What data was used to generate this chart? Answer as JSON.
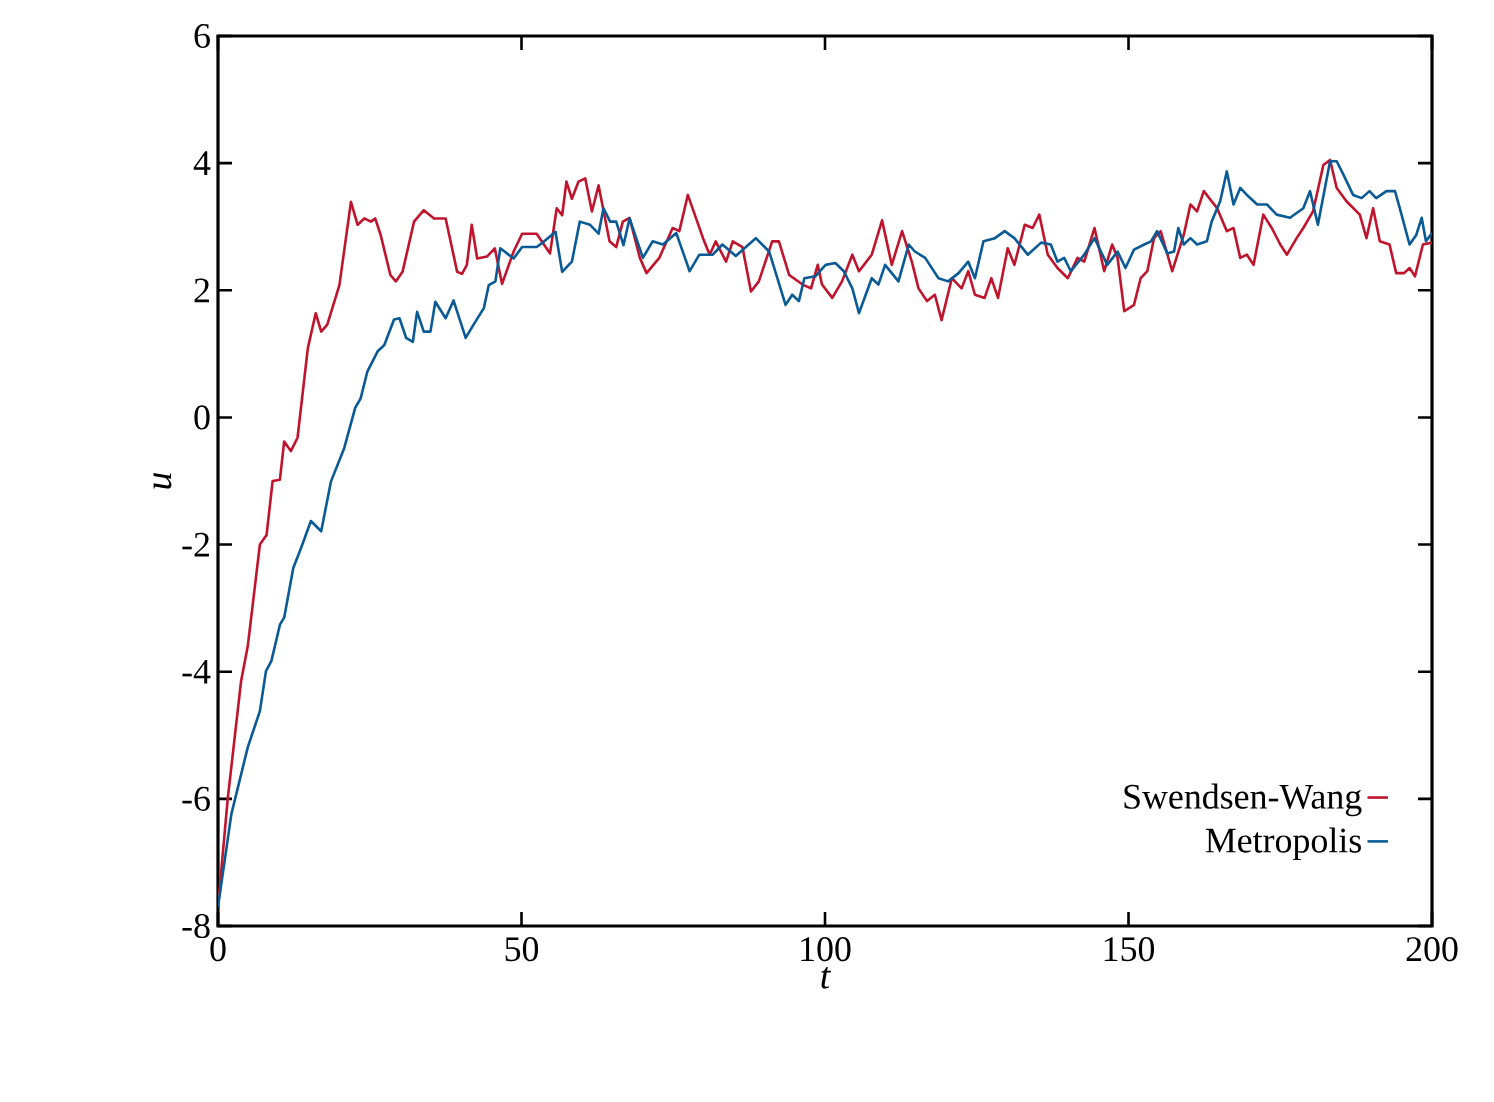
{
  "chart_data": {
    "type": "line",
    "xlabel": "t",
    "ylabel": "u",
    "xlim": [
      0,
      200
    ],
    "ylim": [
      -8,
      6
    ],
    "xticks": [
      0,
      50,
      100,
      150,
      200
    ],
    "yticks": [
      -8,
      -6,
      -4,
      -2,
      0,
      2,
      4,
      6
    ],
    "grid": false,
    "legend": "bottom right",
    "marker": "none",
    "line_style": "solid",
    "series": [
      {
        "name": "Swendsen-Wang",
        "color": "#c0142c",
        "x": [
          0,
          1.6,
          3.8,
          4.9,
          6.9,
          8,
          9,
          10.2,
          10.9,
          12,
          13.1,
          14.8,
          16.1,
          17,
          18,
          20,
          21.9,
          23,
          24.1,
          25.2,
          25.9,
          26.8,
          28.4,
          29.3,
          30.4,
          32.3,
          33.9,
          35.6,
          37.5,
          39.4,
          40.2,
          41,
          41.8,
          42.7,
          44.3,
          45.6,
          46.8,
          48.7,
          50.1,
          52.5,
          54.7,
          55.8,
          56.7,
          57.4,
          58.3,
          59.4,
          60.5,
          61.6,
          62.7,
          64.5,
          65.6,
          66.7,
          67.8,
          69.5,
          70.6,
          72.7,
          74.9,
          76,
          77.4,
          79.9,
          81,
          82,
          83.7,
          84.8,
          86.4,
          87.8,
          89.1,
          91.3,
          92.4,
          94.1,
          96.3,
          97.7,
          98.8,
          99.5,
          101.2,
          102.8,
          104.5,
          105.6,
          107.7,
          109.4,
          111,
          112.7,
          114.3,
          115.4,
          116.8,
          118.1,
          119.2,
          120.9,
          122.5,
          123.6,
          124.7,
          126.3,
          127.4,
          128.5,
          130.1,
          131.2,
          132.9,
          134.2,
          135.3,
          136.7,
          138.3,
          140,
          141.6,
          142.7,
          144.4,
          146,
          147.3,
          148.2,
          149.3,
          150.9,
          152,
          153.1,
          154.2,
          155.3,
          157.2,
          159.1,
          160.2,
          161.3,
          162.4,
          164.6,
          166.2,
          167.3,
          168.4,
          169.5,
          170.6,
          172.2,
          173.6,
          175,
          176.1,
          177.7,
          178.8,
          180.4,
          182.1,
          183.2,
          184.3,
          185.9,
          188.1,
          189.2,
          190.3,
          191.4,
          193,
          194.1,
          195.4,
          196.3,
          197.2,
          198.5,
          200
        ],
        "values": [
          -7.7,
          -6.0,
          -4.15,
          -3.6,
          -2.0,
          -1.85,
          -1.0,
          -0.98,
          -0.38,
          -0.53,
          -0.32,
          1.09,
          1.64,
          1.35,
          1.46,
          2.08,
          3.39,
          3.03,
          3.13,
          3.08,
          3.13,
          2.87,
          2.24,
          2.14,
          2.29,
          3.08,
          3.26,
          3.13,
          3.13,
          2.29,
          2.26,
          2.4,
          3.03,
          2.5,
          2.53,
          2.66,
          2.1,
          2.61,
          2.89,
          2.89,
          2.58,
          3.29,
          3.18,
          3.71,
          3.44,
          3.71,
          3.76,
          3.24,
          3.65,
          2.77,
          2.68,
          3.08,
          3.14,
          2.51,
          2.27,
          2.51,
          2.98,
          2.93,
          3.5,
          2.82,
          2.56,
          2.77,
          2.45,
          2.77,
          2.68,
          1.98,
          2.14,
          2.77,
          2.77,
          2.24,
          2.09,
          2.03,
          2.4,
          2.09,
          1.88,
          2.14,
          2.56,
          2.3,
          2.56,
          3.1,
          2.4,
          2.93,
          2.45,
          2.03,
          1.83,
          1.93,
          1.53,
          2.19,
          2.03,
          2.3,
          1.93,
          1.88,
          2.19,
          1.88,
          2.66,
          2.4,
          3.03,
          2.98,
          3.19,
          2.56,
          2.35,
          2.19,
          2.51,
          2.45,
          2.98,
          2.3,
          2.72,
          2.51,
          1.67,
          1.77,
          2.19,
          2.3,
          2.82,
          2.93,
          2.3,
          2.87,
          3.35,
          3.24,
          3.56,
          3.29,
          2.93,
          2.98,
          2.51,
          2.56,
          2.4,
          3.19,
          2.98,
          2.72,
          2.56,
          2.82,
          2.98,
          3.24,
          3.97,
          4.05,
          3.61,
          3.4,
          3.19,
          2.82,
          3.29,
          2.77,
          2.72,
          2.27,
          2.27,
          2.35,
          2.22,
          2.72,
          2.75
        ]
      },
      {
        "name": "Metropolis",
        "color": "#0a5a96",
        "x": [
          0,
          2.2,
          4.9,
          6.9,
          7.9,
          8.8,
          10.2,
          10.9,
          12.4,
          13.7,
          15.3,
          17,
          18.6,
          20.8,
          22.6,
          23.5,
          24.6,
          26.3,
          27.4,
          29,
          29.9,
          31,
          32.1,
          32.8,
          33.9,
          35,
          35.8,
          37.5,
          38.8,
          40.8,
          42.1,
          43.8,
          44.6,
          45.7,
          46.5,
          48.7,
          50.1,
          52.5,
          53.6,
          55.6,
          56.7,
          58.3,
          59.6,
          61.3,
          62.7,
          63.5,
          64.6,
          65.6,
          66.8,
          67.8,
          70,
          71.6,
          73.3,
          75.5,
          77.7,
          79.3,
          81.5,
          83.1,
          85.3,
          88.6,
          90.8,
          93.5,
          94.6,
          95.7,
          96.6,
          98.4,
          100.1,
          101.7,
          103.1,
          104.5,
          105.6,
          107.7,
          108.8,
          109.9,
          112.1,
          113.8,
          114.8,
          116.5,
          118.7,
          120.3,
          122,
          123.6,
          124.7,
          126.1,
          128,
          129.6,
          131.2,
          133.4,
          135.6,
          137.2,
          138.3,
          139.4,
          140.5,
          142.7,
          144.4,
          146.5,
          148.2,
          149.5,
          150.9,
          152.6,
          153.7,
          154.7,
          156.4,
          157.5,
          158.2,
          159.1,
          160.2,
          161.3,
          162.9,
          163.7,
          165.1,
          166.2,
          167.3,
          168.4,
          169.5,
          171.2,
          172.8,
          174.4,
          176.6,
          178.8,
          179.9,
          181.2,
          183.2,
          184.3,
          185.4,
          187,
          188.4,
          189.7,
          190.8,
          192.5,
          193.9,
          194.7,
          196.3,
          197.4,
          198.3,
          199,
          200
        ],
        "values": [
          -7.7,
          -6.24,
          -5.19,
          -4.62,
          -3.99,
          -3.83,
          -3.26,
          -3.15,
          -2.37,
          -2.05,
          -1.63,
          -1.79,
          -1.01,
          -0.48,
          0.15,
          0.3,
          0.72,
          1.04,
          1.14,
          1.54,
          1.56,
          1.25,
          1.19,
          1.66,
          1.35,
          1.35,
          1.82,
          1.56,
          1.84,
          1.25,
          1.46,
          1.72,
          2.08,
          2.14,
          2.66,
          2.5,
          2.68,
          2.68,
          2.76,
          2.92,
          2.29,
          2.45,
          3.08,
          3.03,
          2.89,
          3.29,
          3.08,
          3.08,
          2.71,
          3.13,
          2.51,
          2.77,
          2.72,
          2.9,
          2.3,
          2.56,
          2.56,
          2.72,
          2.54,
          2.82,
          2.61,
          1.77,
          1.93,
          1.83,
          2.19,
          2.22,
          2.4,
          2.43,
          2.3,
          2.03,
          1.64,
          2.19,
          2.09,
          2.4,
          2.14,
          2.72,
          2.61,
          2.51,
          2.19,
          2.14,
          2.27,
          2.45,
          2.19,
          2.77,
          2.82,
          2.93,
          2.82,
          2.56,
          2.75,
          2.72,
          2.45,
          2.51,
          2.3,
          2.56,
          2.82,
          2.4,
          2.61,
          2.35,
          2.64,
          2.72,
          2.77,
          2.93,
          2.58,
          2.61,
          2.98,
          2.72,
          2.82,
          2.72,
          2.77,
          3.08,
          3.4,
          3.87,
          3.35,
          3.61,
          3.5,
          3.35,
          3.35,
          3.19,
          3.14,
          3.29,
          3.56,
          3.03,
          4.03,
          4.03,
          3.82,
          3.5,
          3.45,
          3.56,
          3.45,
          3.56,
          3.56,
          3.29,
          2.72,
          2.87,
          3.14,
          2.77,
          2.9
        ]
      }
    ]
  }
}
